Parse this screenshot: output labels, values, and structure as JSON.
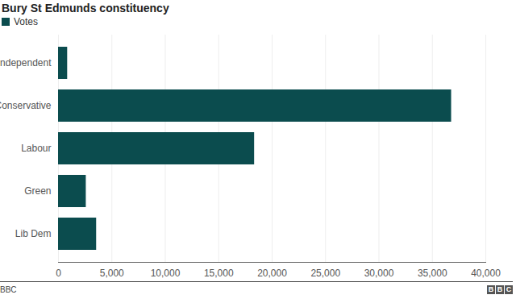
{
  "chart_data": {
    "type": "bar",
    "title": "Bury St Edmunds constituency",
    "orientation": "horizontal",
    "categories": [
      "Independent",
      "Conservative",
      "Labour",
      "Green",
      "Lib Dem"
    ],
    "series": [
      {
        "name": "Votes",
        "color": "#0b4c4e",
        "values": [
          852,
          36794,
          18353,
          2596,
          3565
        ]
      }
    ],
    "xlim": [
      0,
      40000
    ],
    "xticks": [
      0,
      {
        "value": 5000,
        "label": "5,000"
      },
      {
        "value": 10000,
        "label": "10,000"
      },
      {
        "value": 15000,
        "label": "15,000"
      },
      {
        "value": 20000,
        "label": "20,000"
      },
      {
        "value": 25000,
        "label": "25,000"
      },
      {
        "value": 30000,
        "label": "30,000"
      },
      {
        "value": 35000,
        "label": "35,000"
      },
      {
        "value": 40000,
        "label": "40,000"
      }
    ],
    "grid": true,
    "legend": "top-left",
    "caption": "BBC"
  }
}
